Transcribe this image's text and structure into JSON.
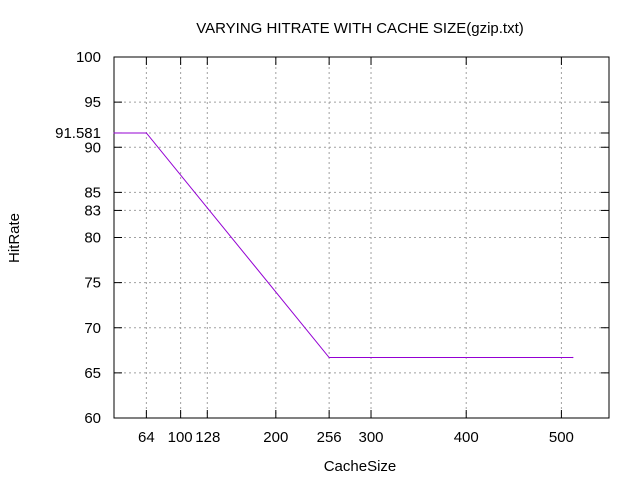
{
  "chart_data": {
    "type": "line",
    "title": "VARYING HITRATE WITH CACHE SIZE(gzip.txt)",
    "xlabel": "CacheSize",
    "ylabel": "HitRate",
    "xlim": [
      30,
      550
    ],
    "ylim": [
      60,
      100
    ],
    "x_ticks": [
      {
        "value": 64,
        "label": "64"
      },
      {
        "value": 100,
        "label": "100"
      },
      {
        "value": 128,
        "label": "128"
      },
      {
        "value": 200,
        "label": "200"
      },
      {
        "value": 256,
        "label": "256"
      },
      {
        "value": 300,
        "label": "300"
      },
      {
        "value": 400,
        "label": "400"
      },
      {
        "value": 500,
        "label": "500"
      }
    ],
    "y_ticks": [
      {
        "value": 60,
        "label": "60"
      },
      {
        "value": 65,
        "label": "65"
      },
      {
        "value": 70,
        "label": "70"
      },
      {
        "value": 75,
        "label": "75"
      },
      {
        "value": 80,
        "label": "80"
      },
      {
        "value": 83,
        "label": "83"
      },
      {
        "value": 85,
        "label": "85"
      },
      {
        "value": 90,
        "label": "90"
      },
      {
        "value": 91.581,
        "label": "91.581"
      },
      {
        "value": 95,
        "label": "95"
      },
      {
        "value": 100,
        "label": "100"
      }
    ],
    "grid": true,
    "series": [
      {
        "color": "#9400d3",
        "points": [
          {
            "x": 30,
            "y": 91.581
          },
          {
            "x": 64,
            "y": 91.581
          },
          {
            "x": 256,
            "y": 66.7
          },
          {
            "x": 512,
            "y": 66.7
          }
        ]
      }
    ]
  }
}
